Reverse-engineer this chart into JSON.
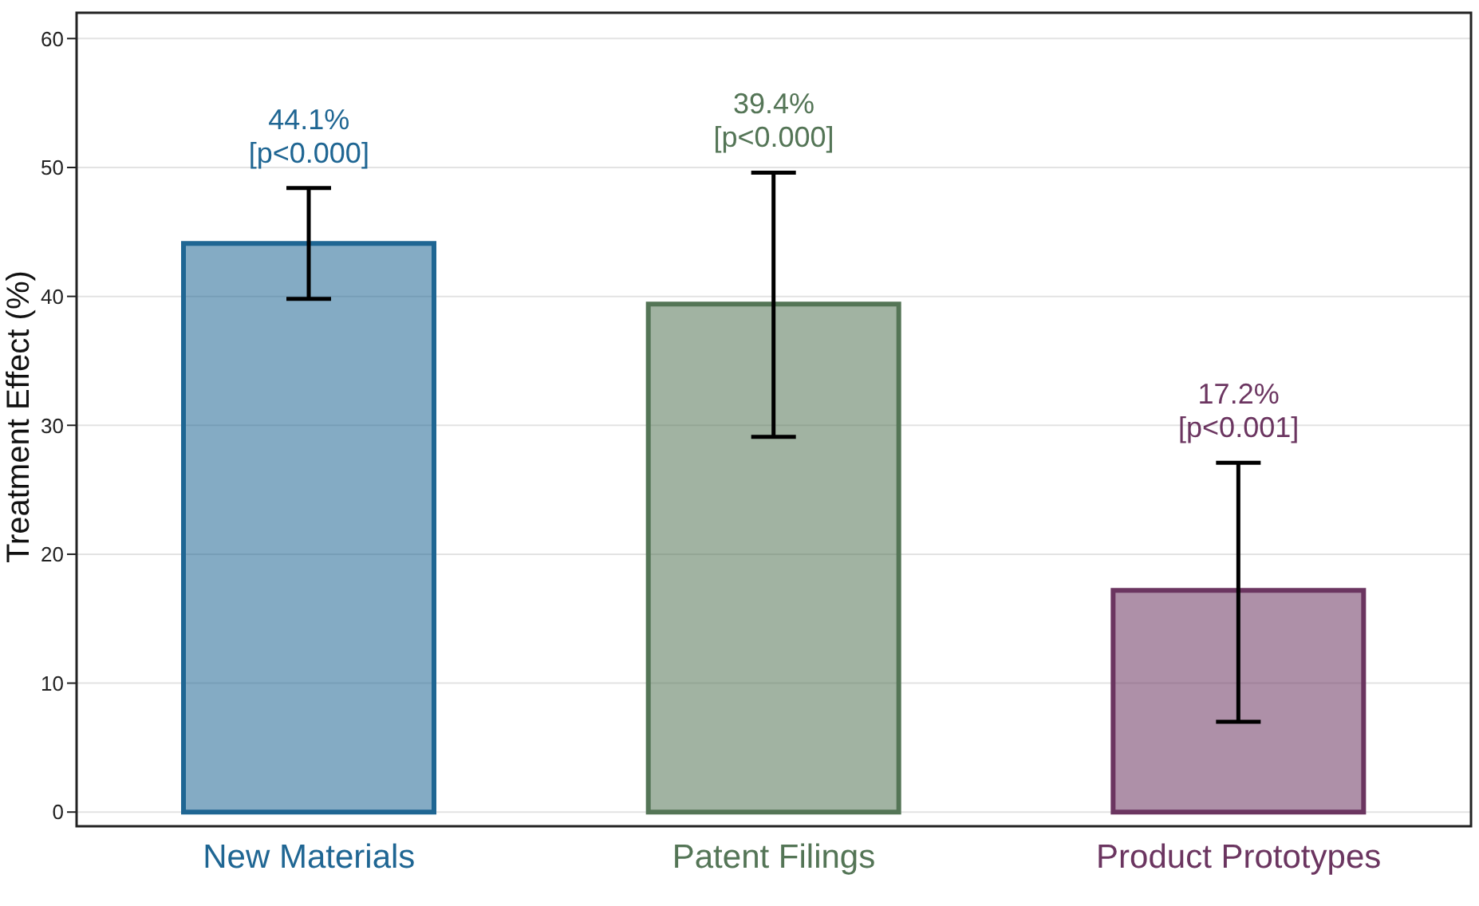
{
  "chart_data": {
    "type": "bar",
    "ylabel": "Treatment Effect (%)",
    "categories": [
      "New Materials",
      "Patent Filings",
      "Product Prototypes"
    ],
    "values": [
      44.1,
      39.4,
      17.2
    ],
    "colors": [
      "#1f6693",
      "#547556",
      "#6b3560"
    ],
    "errors": [
      [
        39.8,
        48.4
      ],
      [
        29.1,
        49.6
      ],
      [
        7.0,
        27.1
      ]
    ],
    "annotations": [
      {
        "text": "44.1%\n[p<0.000]",
        "x": "New Materials",
        "y": 48.4
      },
      {
        "text": "39.4%\n[p<0.000]",
        "x": "Patent Filings",
        "y": 49.6
      },
      {
        "text": "17.2%\n[p<0.001]",
        "x": "Product Prototypes",
        "y": 27.1
      }
    ],
    "ylim": [
      -1.1,
      62
    ],
    "yticks": [
      0,
      10,
      20,
      30,
      40,
      50,
      60
    ],
    "grid": "y"
  }
}
